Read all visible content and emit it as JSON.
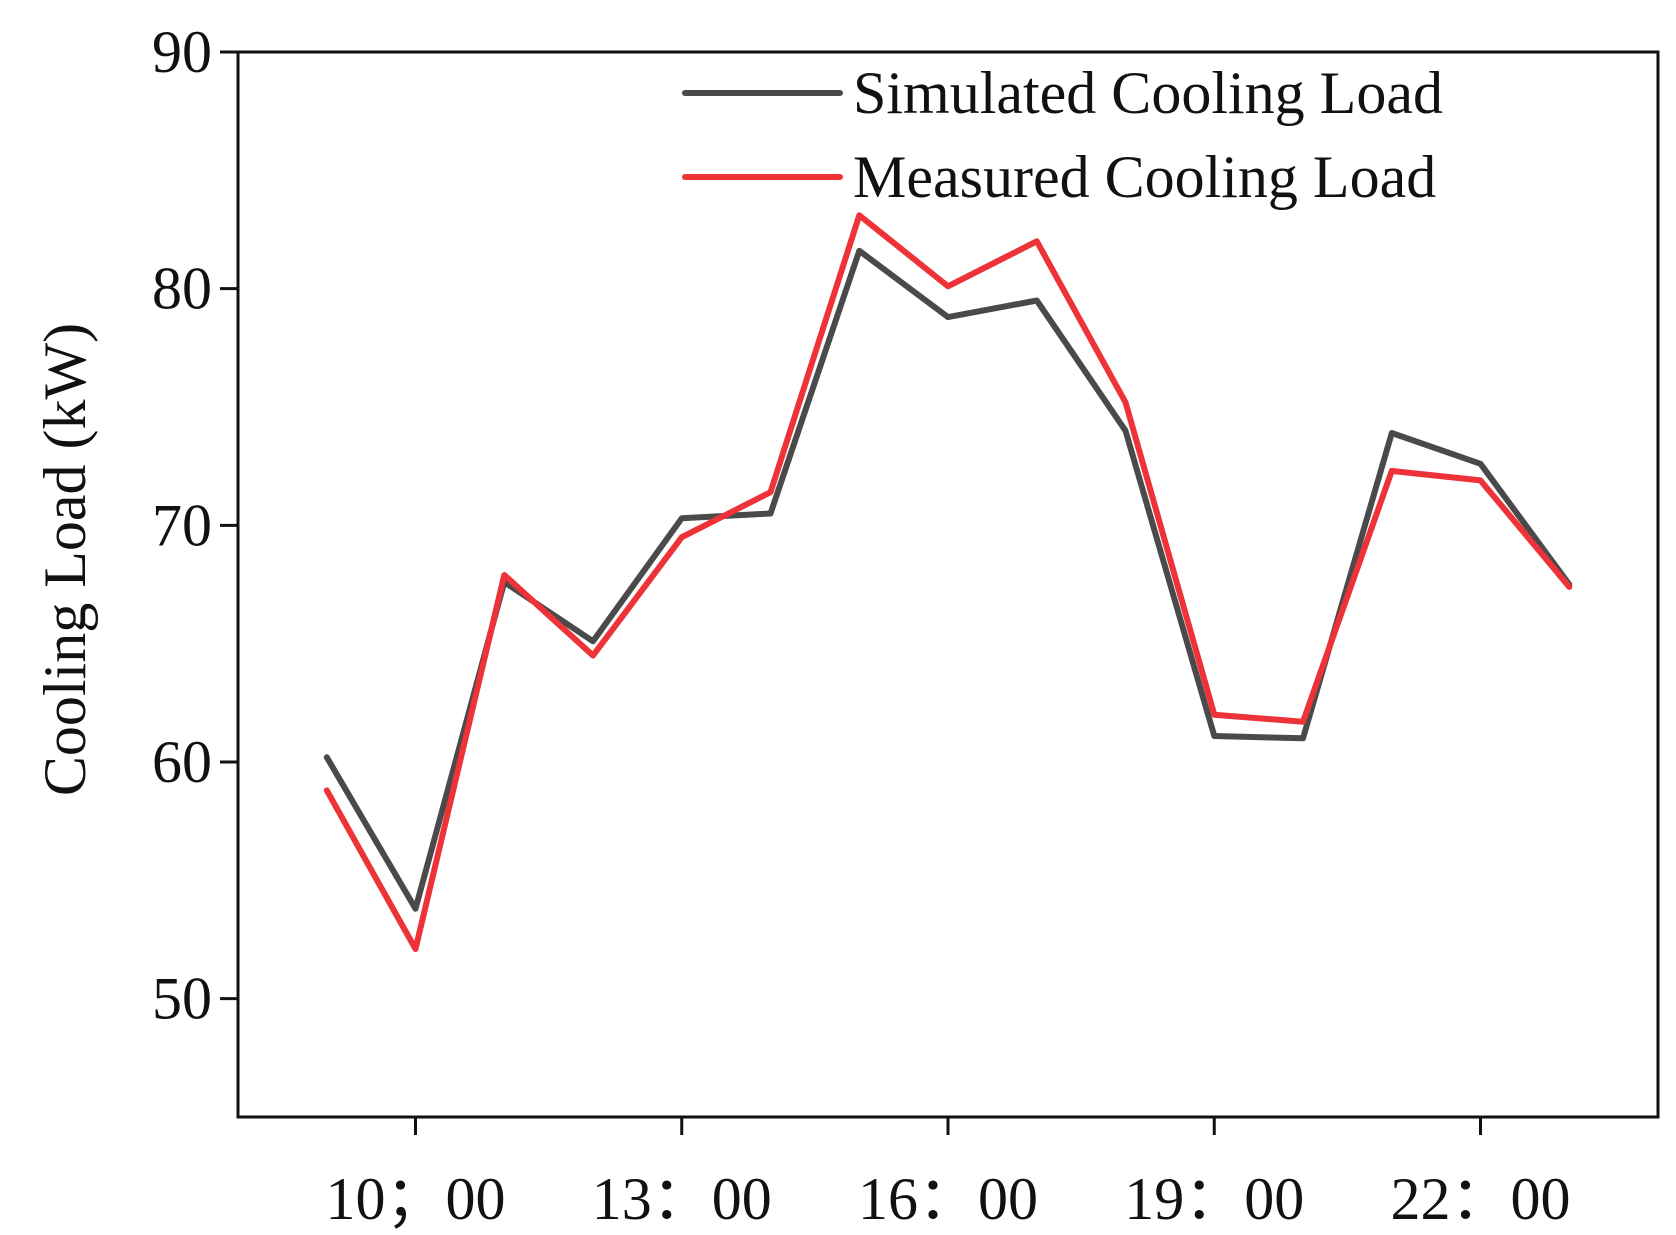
{
  "chart_data": {
    "type": "line",
    "title": "",
    "xlabel": "",
    "ylabel": "Cooling Load (kW)",
    "ylim": [
      45,
      90
    ],
    "yticks": [
      50,
      60,
      70,
      80,
      90
    ],
    "x": [
      9,
      10,
      11,
      12,
      13,
      14,
      15,
      16,
      17,
      18,
      19,
      20,
      21,
      22,
      23
    ],
    "xticks": [
      {
        "x": 10,
        "label": "10；00"
      },
      {
        "x": 13,
        "label": "13：00"
      },
      {
        "x": 16,
        "label": "16：00"
      },
      {
        "x": 19,
        "label": "19：00"
      },
      {
        "x": 22,
        "label": "22：00"
      }
    ],
    "xlim": [
      8,
      24
    ],
    "grid": false,
    "legend_position": "top-right",
    "series": [
      {
        "name": "Simulated Cooling Load",
        "color": "#4a4a4a",
        "values": [
          60.2,
          53.8,
          67.6,
          65.1,
          70.3,
          70.5,
          81.6,
          78.8,
          79.5,
          74.0,
          61.1,
          61.0,
          73.9,
          72.6,
          67.5
        ]
      },
      {
        "name": "Measured Cooling Load",
        "color": "#ee3338",
        "values": [
          58.8,
          52.1,
          67.9,
          64.5,
          69.5,
          71.4,
          83.1,
          80.1,
          82.0,
          75.2,
          62.0,
          61.7,
          72.3,
          71.9,
          67.4
        ]
      }
    ]
  }
}
